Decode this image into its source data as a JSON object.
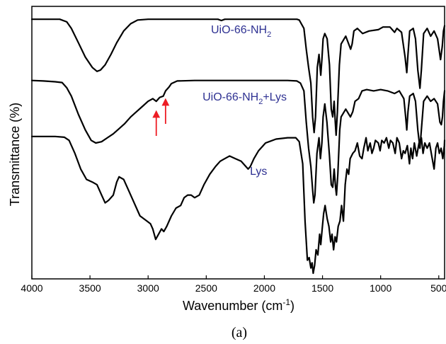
{
  "chart_data": {
    "type": "line",
    "xlabel": "Wavenumber (cm",
    "xlabel_sup": "-1",
    "xlabel_close": ")",
    "ylabel": "Transmittance (%)",
    "xlim": [
      4000,
      450
    ],
    "x_reversed": true,
    "x_ticks": [
      4000,
      3500,
      3000,
      2500,
      2000,
      1500,
      1000,
      500
    ],
    "y_ticks_shown": false,
    "grid": false,
    "caption": "(a)",
    "colors": {
      "line": "#000000",
      "label": "#2e3192",
      "arrow": "#ed1c24"
    },
    "series": [
      {
        "name": "UiO-66-NH2",
        "label_parts": {
          "base": "UiO-66-NH",
          "sub": "2",
          "rest": ""
        },
        "baseline": 0.975,
        "points": [
          [
            4000,
            0.975
          ],
          [
            3900,
            0.975
          ],
          [
            3760,
            0.975
          ],
          [
            3700,
            0.965
          ],
          [
            3660,
            0.94
          ],
          [
            3600,
            0.885
          ],
          [
            3540,
            0.83
          ],
          [
            3480,
            0.79
          ],
          [
            3440,
            0.775
          ],
          [
            3410,
            0.78
          ],
          [
            3370,
            0.8
          ],
          [
            3320,
            0.84
          ],
          [
            3270,
            0.885
          ],
          [
            3210,
            0.93
          ],
          [
            3150,
            0.958
          ],
          [
            3090,
            0.972
          ],
          [
            3000,
            0.975
          ],
          [
            2700,
            0.975
          ],
          [
            2400,
            0.975
          ],
          [
            2370,
            0.97
          ],
          [
            2340,
            0.975
          ],
          [
            1900,
            0.975
          ],
          [
            1720,
            0.975
          ],
          [
            1700,
            0.972
          ],
          [
            1660,
            0.94
          ],
          [
            1640,
            0.86
          ],
          [
            1620,
            0.79
          ],
          [
            1600,
            0.73
          ],
          [
            1585,
            0.6
          ],
          [
            1572,
            0.54
          ],
          [
            1560,
            0.6
          ],
          [
            1545,
            0.79
          ],
          [
            1530,
            0.84
          ],
          [
            1515,
            0.76
          ],
          [
            1505,
            0.82
          ],
          [
            1495,
            0.9
          ],
          [
            1480,
            0.92
          ],
          [
            1460,
            0.9
          ],
          [
            1440,
            0.8
          ],
          [
            1425,
            0.63
          ],
          [
            1412,
            0.6
          ],
          [
            1400,
            0.66
          ],
          [
            1390,
            0.58
          ],
          [
            1383,
            0.53
          ],
          [
            1372,
            0.62
          ],
          [
            1355,
            0.8
          ],
          [
            1340,
            0.88
          ],
          [
            1300,
            0.91
          ],
          [
            1258,
            0.86
          ],
          [
            1245,
            0.88
          ],
          [
            1230,
            0.93
          ],
          [
            1200,
            0.94
          ],
          [
            1155,
            0.92
          ],
          [
            1100,
            0.93
          ],
          [
            1020,
            0.935
          ],
          [
            980,
            0.945
          ],
          [
            920,
            0.945
          ],
          [
            880,
            0.925
          ],
          [
            860,
            0.94
          ],
          [
            820,
            0.925
          ],
          [
            790,
            0.83
          ],
          [
            775,
            0.77
          ],
          [
            765,
            0.84
          ],
          [
            750,
            0.93
          ],
          [
            720,
            0.94
          ],
          [
            700,
            0.9
          ],
          [
            680,
            0.78
          ],
          [
            662,
            0.71
          ],
          [
            650,
            0.78
          ],
          [
            630,
            0.92
          ],
          [
            600,
            0.94
          ],
          [
            570,
            0.91
          ],
          [
            540,
            0.93
          ],
          [
            510,
            0.9
          ],
          [
            485,
            0.82
          ],
          [
            470,
            0.87
          ],
          [
            460,
            0.93
          ],
          [
            450,
            0.95
          ]
        ]
      },
      {
        "name": "UiO-66-NH2+Lys",
        "label_parts": {
          "base": "UiO-66-NH",
          "sub": "2",
          "rest": "+Lys"
        },
        "baseline": 0.74,
        "points": [
          [
            4000,
            0.74
          ],
          [
            3900,
            0.738
          ],
          [
            3800,
            0.735
          ],
          [
            3740,
            0.732
          ],
          [
            3700,
            0.712
          ],
          [
            3660,
            0.68
          ],
          [
            3600,
            0.61
          ],
          [
            3540,
            0.55
          ],
          [
            3490,
            0.51
          ],
          [
            3450,
            0.5
          ],
          [
            3400,
            0.505
          ],
          [
            3350,
            0.52
          ],
          [
            3300,
            0.535
          ],
          [
            3250,
            0.555
          ],
          [
            3200,
            0.575
          ],
          [
            3150,
            0.6
          ],
          [
            3100,
            0.62
          ],
          [
            3050,
            0.64
          ],
          [
            3000,
            0.66
          ],
          [
            2960,
            0.67
          ],
          [
            2930,
            0.66
          ],
          [
            2900,
            0.675
          ],
          [
            2870,
            0.68
          ],
          [
            2850,
            0.7
          ],
          [
            2820,
            0.715
          ],
          [
            2800,
            0.728
          ],
          [
            2750,
            0.738
          ],
          [
            2600,
            0.74
          ],
          [
            2400,
            0.74
          ],
          [
            2000,
            0.74
          ],
          [
            1800,
            0.74
          ],
          [
            1720,
            0.738
          ],
          [
            1690,
            0.73
          ],
          [
            1660,
            0.7
          ],
          [
            1640,
            0.58
          ],
          [
            1620,
            0.48
          ],
          [
            1600,
            0.41
          ],
          [
            1585,
            0.32
          ],
          [
            1575,
            0.27
          ],
          [
            1565,
            0.3
          ],
          [
            1548,
            0.46
          ],
          [
            1530,
            0.52
          ],
          [
            1518,
            0.44
          ],
          [
            1505,
            0.5
          ],
          [
            1495,
            0.6
          ],
          [
            1480,
            0.65
          ],
          [
            1462,
            0.58
          ],
          [
            1440,
            0.45
          ],
          [
            1425,
            0.34
          ],
          [
            1412,
            0.33
          ],
          [
            1400,
            0.4
          ],
          [
            1388,
            0.33
          ],
          [
            1380,
            0.3
          ],
          [
            1368,
            0.38
          ],
          [
            1352,
            0.55
          ],
          [
            1340,
            0.6
          ],
          [
            1300,
            0.63
          ],
          [
            1260,
            0.6
          ],
          [
            1240,
            0.62
          ],
          [
            1220,
            0.66
          ],
          [
            1190,
            0.67
          ],
          [
            1160,
            0.7
          ],
          [
            1120,
            0.705
          ],
          [
            1060,
            0.7
          ],
          [
            1000,
            0.705
          ],
          [
            940,
            0.7
          ],
          [
            880,
            0.69
          ],
          [
            840,
            0.7
          ],
          [
            800,
            0.67
          ],
          [
            785,
            0.6
          ],
          [
            775,
            0.55
          ],
          [
            765,
            0.62
          ],
          [
            750,
            0.68
          ],
          [
            720,
            0.69
          ],
          [
            700,
            0.66
          ],
          [
            680,
            0.55
          ],
          [
            662,
            0.48
          ],
          [
            650,
            0.55
          ],
          [
            630,
            0.66
          ],
          [
            600,
            0.68
          ],
          [
            570,
            0.66
          ],
          [
            540,
            0.67
          ],
          [
            510,
            0.65
          ],
          [
            490,
            0.58
          ],
          [
            478,
            0.57
          ],
          [
            468,
            0.6
          ],
          [
            460,
            0.66
          ],
          [
            450,
            0.7
          ]
        ]
      },
      {
        "name": "Lys",
        "label_parts": {
          "base": "Lys",
          "sub": "",
          "rest": ""
        },
        "baseline": 0.525,
        "points": [
          [
            4000,
            0.525
          ],
          [
            3900,
            0.525
          ],
          [
            3800,
            0.525
          ],
          [
            3720,
            0.522
          ],
          [
            3680,
            0.51
          ],
          [
            3630,
            0.46
          ],
          [
            3580,
            0.4
          ],
          [
            3530,
            0.36
          ],
          [
            3480,
            0.35
          ],
          [
            3440,
            0.34
          ],
          [
            3400,
            0.3
          ],
          [
            3370,
            0.27
          ],
          [
            3340,
            0.28
          ],
          [
            3300,
            0.3
          ],
          [
            3270,
            0.35
          ],
          [
            3250,
            0.37
          ],
          [
            3210,
            0.36
          ],
          [
            3170,
            0.32
          ],
          [
            3120,
            0.27
          ],
          [
            3070,
            0.22
          ],
          [
            3010,
            0.2
          ],
          [
            2980,
            0.19
          ],
          [
            2960,
            0.17
          ],
          [
            2935,
            0.13
          ],
          [
            2910,
            0.15
          ],
          [
            2885,
            0.17
          ],
          [
            2865,
            0.16
          ],
          [
            2840,
            0.18
          ],
          [
            2800,
            0.22
          ],
          [
            2760,
            0.25
          ],
          [
            2720,
            0.26
          ],
          [
            2690,
            0.29
          ],
          [
            2660,
            0.3
          ],
          [
            2630,
            0.3
          ],
          [
            2600,
            0.29
          ],
          [
            2560,
            0.3
          ],
          [
            2520,
            0.34
          ],
          [
            2470,
            0.38
          ],
          [
            2420,
            0.41
          ],
          [
            2380,
            0.43
          ],
          [
            2340,
            0.44
          ],
          [
            2300,
            0.45
          ],
          [
            2250,
            0.44
          ],
          [
            2200,
            0.43
          ],
          [
            2160,
            0.41
          ],
          [
            2140,
            0.4
          ],
          [
            2120,
            0.41
          ],
          [
            2090,
            0.44
          ],
          [
            2050,
            0.47
          ],
          [
            1990,
            0.5
          ],
          [
            1900,
            0.515
          ],
          [
            1800,
            0.52
          ],
          [
            1730,
            0.52
          ],
          [
            1700,
            0.505
          ],
          [
            1670,
            0.42
          ],
          [
            1650,
            0.2
          ],
          [
            1630,
            0.05
          ],
          [
            1615,
            0.06
          ],
          [
            1600,
            0.02
          ],
          [
            1590,
            0.04
          ],
          [
            1580,
            0.0
          ],
          [
            1568,
            0.03
          ],
          [
            1555,
            0.09
          ],
          [
            1540,
            0.07
          ],
          [
            1525,
            0.15
          ],
          [
            1515,
            0.11
          ],
          [
            1503,
            0.17
          ],
          [
            1490,
            0.23
          ],
          [
            1478,
            0.26
          ],
          [
            1460,
            0.21
          ],
          [
            1445,
            0.18
          ],
          [
            1430,
            0.12
          ],
          [
            1418,
            0.15
          ],
          [
            1405,
            0.09
          ],
          [
            1392,
            0.14
          ],
          [
            1380,
            0.12
          ],
          [
            1365,
            0.18
          ],
          [
            1350,
            0.2
          ],
          [
            1336,
            0.26
          ],
          [
            1320,
            0.2
          ],
          [
            1305,
            0.34
          ],
          [
            1290,
            0.4
          ],
          [
            1275,
            0.38
          ],
          [
            1262,
            0.44
          ],
          [
            1240,
            0.46
          ],
          [
            1220,
            0.47
          ],
          [
            1200,
            0.5
          ],
          [
            1180,
            0.45
          ],
          [
            1160,
            0.44
          ],
          [
            1145,
            0.48
          ],
          [
            1125,
            0.52
          ],
          [
            1110,
            0.47
          ],
          [
            1090,
            0.5
          ],
          [
            1075,
            0.46
          ],
          [
            1060,
            0.48
          ],
          [
            1045,
            0.51
          ],
          [
            1020,
            0.5
          ],
          [
            1005,
            0.47
          ],
          [
            990,
            0.51
          ],
          [
            970,
            0.5
          ],
          [
            950,
            0.52
          ],
          [
            930,
            0.48
          ],
          [
            915,
            0.51
          ],
          [
            895,
            0.5
          ],
          [
            875,
            0.46
          ],
          [
            860,
            0.52
          ],
          [
            840,
            0.5
          ],
          [
            820,
            0.44
          ],
          [
            805,
            0.47
          ],
          [
            790,
            0.46
          ],
          [
            770,
            0.49
          ],
          [
            752,
            0.42
          ],
          [
            740,
            0.48
          ],
          [
            725,
            0.44
          ],
          [
            710,
            0.5
          ],
          [
            690,
            0.45
          ],
          [
            670,
            0.5
          ],
          [
            650,
            0.52
          ],
          [
            635,
            0.46
          ],
          [
            620,
            0.5
          ],
          [
            600,
            0.48
          ],
          [
            580,
            0.5
          ],
          [
            560,
            0.45
          ],
          [
            540,
            0.4
          ],
          [
            525,
            0.48
          ],
          [
            510,
            0.5
          ],
          [
            495,
            0.46
          ],
          [
            480,
            0.48
          ],
          [
            465,
            0.44
          ],
          [
            452,
            0.49
          ],
          [
            450,
            0.51
          ]
        ]
      }
    ],
    "arrows_at_x": [
      2930,
      2850
    ]
  }
}
